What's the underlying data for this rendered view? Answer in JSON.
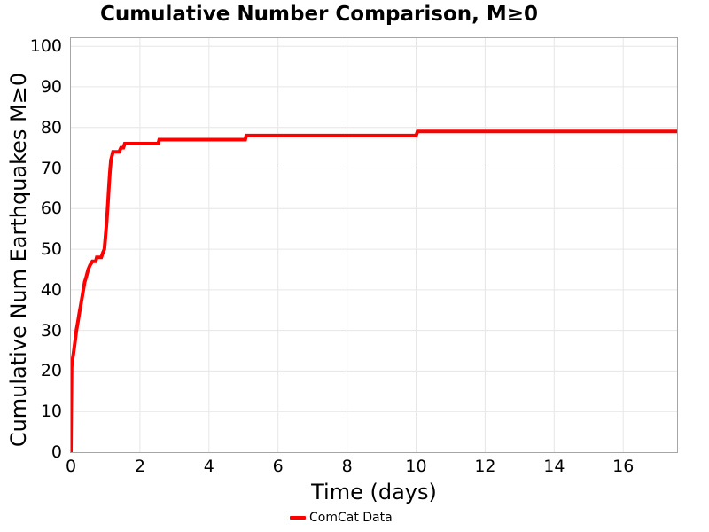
{
  "chart_data": {
    "type": "line",
    "title": "Cumulative Number Comparison, M≥0",
    "xlabel": "Time (days)",
    "ylabel": "Cumulative Num Earthquakes M≥0",
    "xlim": [
      0,
      17.56
    ],
    "ylim": [
      0,
      102
    ],
    "xticks": [
      0,
      2,
      4,
      6,
      8,
      10,
      12,
      14,
      16
    ],
    "yticks": [
      0,
      10,
      20,
      30,
      40,
      50,
      60,
      70,
      80,
      90,
      100
    ],
    "grid": true,
    "grid_color": "#e6e6e6",
    "border_color": "#a6a6a6",
    "background_color": "#ffffff",
    "legend": {
      "position": "bottom-center",
      "entries": [
        {
          "label": "ComCat Data",
          "color": "#ff0000",
          "marker": "line"
        }
      ]
    },
    "series": [
      {
        "name": "ComCat Data",
        "color": "#ff0000",
        "line_width": 4,
        "points": [
          [
            0.0,
            0
          ],
          [
            0.02,
            21
          ],
          [
            0.05,
            23
          ],
          [
            0.07,
            24
          ],
          [
            0.1,
            26
          ],
          [
            0.13,
            28
          ],
          [
            0.16,
            30
          ],
          [
            0.2,
            32
          ],
          [
            0.24,
            34
          ],
          [
            0.28,
            36
          ],
          [
            0.32,
            38
          ],
          [
            0.36,
            40
          ],
          [
            0.4,
            42
          ],
          [
            0.44,
            43
          ],
          [
            0.47,
            44
          ],
          [
            0.5,
            45
          ],
          [
            0.55,
            46
          ],
          [
            0.62,
            47
          ],
          [
            0.72,
            47
          ],
          [
            0.75,
            48
          ],
          [
            0.88,
            48
          ],
          [
            0.92,
            49
          ],
          [
            0.97,
            50
          ],
          [
            1.0,
            53
          ],
          [
            1.04,
            57
          ],
          [
            1.07,
            61
          ],
          [
            1.1,
            65
          ],
          [
            1.13,
            69
          ],
          [
            1.16,
            72
          ],
          [
            1.19,
            73
          ],
          [
            1.22,
            74
          ],
          [
            1.4,
            74
          ],
          [
            1.45,
            75
          ],
          [
            1.52,
            75
          ],
          [
            1.56,
            76
          ],
          [
            2.53,
            76
          ],
          [
            2.56,
            77
          ],
          [
            5.05,
            77
          ],
          [
            5.08,
            78
          ],
          [
            10.0,
            78
          ],
          [
            10.04,
            79
          ],
          [
            17.56,
            79
          ]
        ]
      }
    ]
  }
}
